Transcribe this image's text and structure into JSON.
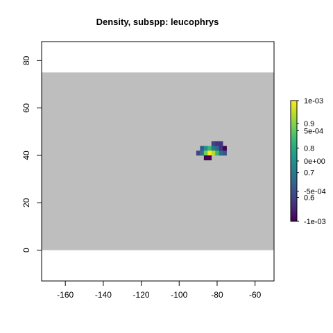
{
  "chart_data": {
    "type": "heatmap",
    "title": "Density, subspp: leucophrys",
    "xlabel": "",
    "ylabel": "",
    "xlim": [
      -172.5,
      -50
    ],
    "ylim": [
      -13,
      88
    ],
    "x_ticks": [
      -160,
      -140,
      -120,
      -100,
      -80,
      -60
    ],
    "y_ticks": [
      0,
      20,
      40,
      60,
      80
    ],
    "background_region": {
      "xmin": -172.5,
      "xmax": -50,
      "ymin": 0,
      "ymax": 75,
      "color": "#bebebe"
    },
    "cell_size": 2,
    "cells": [
      {
        "x": -82,
        "y": 45,
        "v": 0.64,
        "color": "#414487"
      },
      {
        "x": -80,
        "y": 45,
        "v": 0.62,
        "color": "#46337e"
      },
      {
        "x": -78,
        "y": 45,
        "v": 0.62,
        "color": "#46337e"
      },
      {
        "x": -88,
        "y": 43,
        "v": 0.66,
        "color": "#39568c"
      },
      {
        "x": -86,
        "y": 43,
        "v": 0.76,
        "color": "#21918c"
      },
      {
        "x": -84,
        "y": 43,
        "v": 0.8,
        "color": "#35b779"
      },
      {
        "x": -82,
        "y": 43,
        "v": 0.74,
        "color": "#2a788e"
      },
      {
        "x": -80,
        "y": 43,
        "v": 0.7,
        "color": "#31688e"
      },
      {
        "x": -78,
        "y": 43,
        "v": 0.62,
        "color": "#46337e"
      },
      {
        "x": -76,
        "y": 43,
        "v": 0.6,
        "color": "#440154"
      },
      {
        "x": -90,
        "y": 41,
        "v": 0.64,
        "color": "#414487"
      },
      {
        "x": -88,
        "y": 41,
        "v": 0.72,
        "color": "#2c728e"
      },
      {
        "x": -86,
        "y": 41,
        "v": 0.84,
        "color": "#6ece58"
      },
      {
        "x": -84,
        "y": 41,
        "v": 0.98,
        "color": "#fde725"
      },
      {
        "x": -82,
        "y": 41,
        "v": 0.88,
        "color": "#b5de2b"
      },
      {
        "x": -80,
        "y": 41,
        "v": 0.8,
        "color": "#35b779"
      },
      {
        "x": -78,
        "y": 41,
        "v": 0.7,
        "color": "#31688e"
      },
      {
        "x": -76,
        "y": 41,
        "v": 0.66,
        "color": "#39568c"
      },
      {
        "x": -86,
        "y": 39,
        "v": 0.6,
        "color": "#440154"
      },
      {
        "x": -84,
        "y": 39,
        "v": 0.6,
        "color": "#440154"
      }
    ],
    "colorbar": {
      "colors": [
        "#440154",
        "#482878",
        "#3e4989",
        "#31688e",
        "#26828e",
        "#1f9e89",
        "#35b779",
        "#6ece58",
        "#b5de2b",
        "#fde725"
      ],
      "labels_main": [
        {
          "text": "1e-03",
          "pos": 1.0
        },
        {
          "text": "5e-04",
          "pos": 0.75
        },
        {
          "text": "0e+00",
          "pos": 0.5
        },
        {
          "text": "-5e-04",
          "pos": 0.25
        },
        {
          "text": "-1e-03",
          "pos": 0.0
        }
      ],
      "labels_secondary": [
        {
          "text": "0.9",
          "pos": 0.81
        },
        {
          "text": "0.8",
          "pos": 0.607
        },
        {
          "text": "0.7",
          "pos": 0.404
        },
        {
          "text": "0.6",
          "pos": 0.198
        }
      ]
    }
  }
}
